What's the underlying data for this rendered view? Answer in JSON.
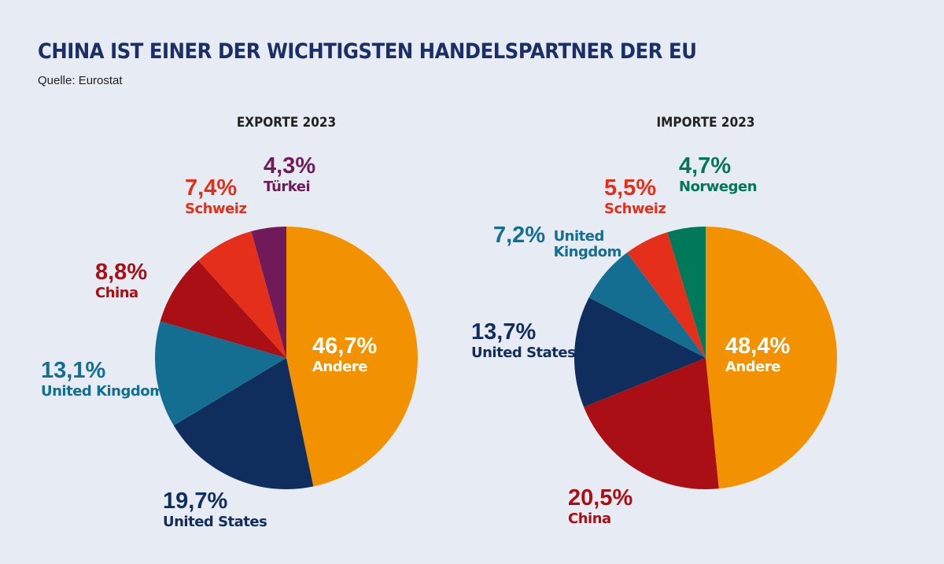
{
  "header": {
    "title": "CHINA IST EINER DER WICHTIGSTEN HANDELSPARTNER DER EU",
    "source": "Quelle: Eurostat"
  },
  "chart_data": [
    {
      "type": "pie",
      "title": "EXPORTE 2023",
      "slices": [
        {
          "label": "Andere",
          "value": 46.7,
          "display": "46,7%",
          "color": "#f39200"
        },
        {
          "label": "United States",
          "value": 19.7,
          "display": "19,7%",
          "color": "#0f2e5e"
        },
        {
          "label": "United Kingdom",
          "value": 13.1,
          "display": "13,1%",
          "color": "#136e91"
        },
        {
          "label": "China",
          "value": 8.8,
          "display": "8,8%",
          "color": "#a90f14"
        },
        {
          "label": "Schweiz",
          "value": 7.4,
          "display": "7,4%",
          "color": "#e4301a"
        },
        {
          "label": "Türkei",
          "value": 4.3,
          "display": "4,3%",
          "color": "#701a5a"
        }
      ]
    },
    {
      "type": "pie",
      "title": "IMPORTE 2023",
      "slices": [
        {
          "label": "Andere",
          "value": 48.4,
          "display": "48,4%",
          "color": "#f39200"
        },
        {
          "label": "China",
          "value": 20.5,
          "display": "20,5%",
          "color": "#a90f14"
        },
        {
          "label": "United States",
          "value": 13.7,
          "display": "13,7%",
          "color": "#0f2e5e"
        },
        {
          "label": "United Kingdom",
          "value": 7.2,
          "display": "7,2%",
          "display_name": "United Kingdom",
          "color": "#136e91"
        },
        {
          "label": "Schweiz",
          "value": 5.5,
          "display": "5,5%",
          "color": "#e4301a"
        },
        {
          "label": "Norwegen",
          "value": 4.7,
          "display": "4,7%",
          "color": "#00785a"
        }
      ]
    }
  ]
}
